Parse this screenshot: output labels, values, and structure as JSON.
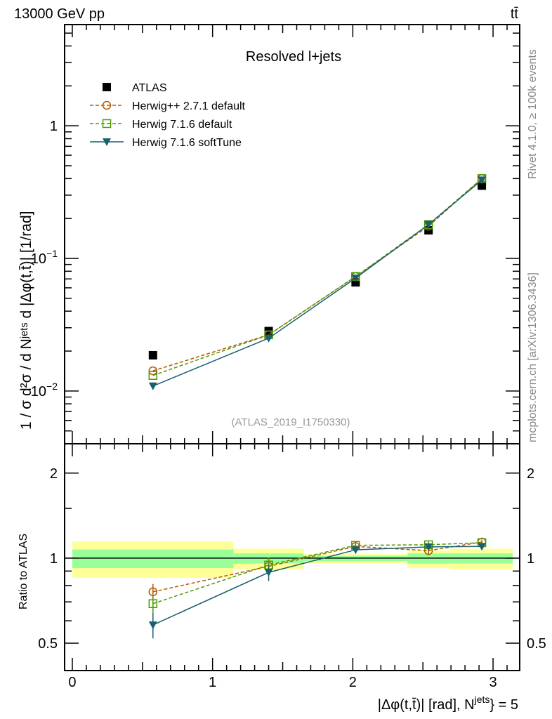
{
  "header": {
    "left": "13000 GeV pp",
    "right": "tt̄"
  },
  "side_texts": {
    "rivet": "Rivet 4.1.0, ≥ 100k events",
    "mcplots": "mcplots.cern.ch [arXiv:1306.3436]"
  },
  "watermark": "(ATLAS_2019_I1750330)",
  "chart_data": [
    {
      "type": "line",
      "title": "Resolved l+jets",
      "ylabel": "1 / σ d²σ / d Nʲᵉᵗˢ d |Δφ(t,t̄)| [1/rad]",
      "xlabel": "|Δφ(t,t̄)| [rad], Nʲᵉᵗˢ} = 5",
      "yscale": "log",
      "xlim": [
        -0.055,
        3.19
      ],
      "ylim": [
        0.004,
        5.8
      ],
      "yticks": [
        {
          "base": "1",
          "exp": ""
        },
        {
          "base": "10",
          "exp": "−1"
        },
        {
          "base": "10",
          "exp": "−2"
        }
      ],
      "ytick_values": [
        1,
        0.1,
        0.01
      ],
      "legend_position": "top-left",
      "x": [
        0.575,
        1.4,
        2.02,
        2.54,
        2.92
      ],
      "series": [
        {
          "name": "ATLAS",
          "marker": "square-filled",
          "color": "#000000",
          "line": "none",
          "values": [
            0.0186,
            0.0283,
            0.066,
            0.163,
            0.354
          ]
        },
        {
          "name": "Herwig++ 2.7.1 default",
          "marker": "circle-open",
          "color": "#b35900",
          "line": "dashed",
          "values": [
            0.0142,
            0.0265,
            0.073,
            0.175,
            0.4
          ]
        },
        {
          "name": "Herwig 7.1.6 default",
          "marker": "square-open",
          "color": "#4a9a00",
          "line": "dashed",
          "values": [
            0.0131,
            0.0265,
            0.073,
            0.18,
            0.4
          ]
        },
        {
          "name": "Herwig 7.1.6 softTune",
          "marker": "triangle-down",
          "color": "#1a5f70",
          "line": "solid",
          "values": [
            0.0109,
            0.025,
            0.071,
            0.18,
            0.39
          ]
        }
      ]
    },
    {
      "type": "line",
      "ylabel": "Ratio to ATLAS",
      "xlabel": "|Δφ(t,t̄)| [rad], N",
      "xlabel_sup": "jets",
      "xlabel_tail": "} = 5",
      "yscale": "log",
      "xlim": [
        -0.055,
        3.19
      ],
      "ylim": [
        0.4,
        2.54
      ],
      "yticks": [
        "2",
        "1",
        "0.5"
      ],
      "ytick_values": [
        2,
        1,
        0.5
      ],
      "xticks": [
        "0",
        "1",
        "2",
        "3"
      ],
      "xtick_values": [
        0,
        1,
        2,
        3
      ],
      "bins": [
        [
          0,
          1.15
        ],
        [
          1.15,
          1.65
        ],
        [
          1.65,
          2.39
        ],
        [
          2.39,
          2.69
        ],
        [
          2.69,
          3.14
        ]
      ],
      "band_total": [
        [
          0.852,
          1.147
        ],
        [
          0.912,
          1.08
        ],
        [
          0.957,
          1.033
        ],
        [
          0.921,
          1.063
        ],
        [
          0.912,
          1.08
        ]
      ],
      "band_stat": [
        [
          0.923,
          1.073
        ],
        [
          0.957,
          1.039
        ],
        [
          0.976,
          1.019
        ],
        [
          0.957,
          1.039
        ],
        [
          0.957,
          1.039
        ]
      ],
      "x": [
        0.575,
        1.4,
        2.02,
        2.54,
        2.92
      ],
      "series": [
        {
          "name": "Herwig++ 2.7.1 default",
          "color": "#b35900",
          "values": [
            0.76,
            0.935,
            1.1,
            1.063,
            1.14
          ],
          "err": [
            0.05,
            0.06,
            0.03,
            0.03,
            0.02
          ]
        },
        {
          "name": "Herwig 7.1.6 default",
          "color": "#4a9a00",
          "values": [
            0.69,
            0.945,
            1.11,
            1.115,
            1.134
          ],
          "err": [
            0.05,
            0.06,
            0.03,
            0.03,
            0.02
          ]
        },
        {
          "name": "Herwig 7.1.6 softTune",
          "color": "#1a5f70",
          "values": [
            0.58,
            0.89,
            1.07,
            1.096,
            1.1
          ],
          "err": [
            0.06,
            0.06,
            0.03,
            0.03,
            0.02
          ]
        }
      ]
    }
  ]
}
